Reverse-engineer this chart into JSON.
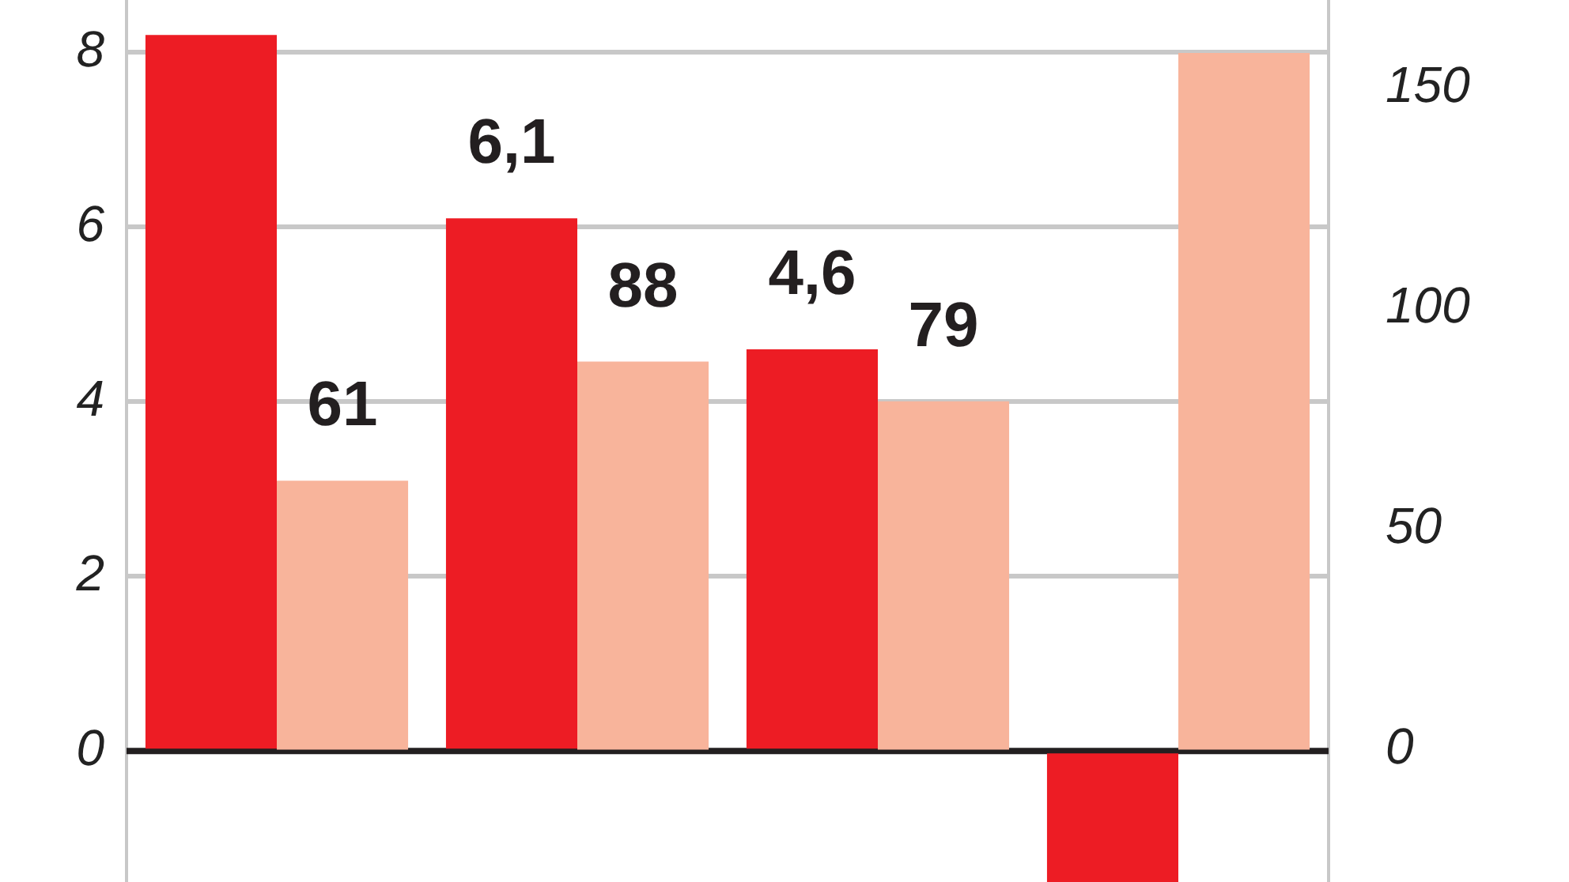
{
  "chart_data": {
    "type": "bar",
    "categories": [
      null,
      null,
      null,
      null
    ],
    "series": [
      {
        "color": "#ed1c24",
        "values": [
          8.2,
          6.1,
          4.6,
          -1.5
        ],
        "value_labels": [
          null,
          "6,1",
          "4,6",
          null
        ]
      },
      {
        "color": "#f8b49b",
        "axis": "y2",
        "values": [
          61,
          88,
          79,
          158
        ],
        "value_labels": [
          "61",
          "88",
          "79",
          null
        ]
      }
    ],
    "ylim": [
      -1.5,
      8.6
    ],
    "yticks": [
      0,
      2,
      4,
      6,
      8
    ],
    "y2lim": [
      -30,
      170
    ],
    "y2ticks": [
      0,
      50,
      100,
      150
    ],
    "grid": "y",
    "legend": false
  }
}
